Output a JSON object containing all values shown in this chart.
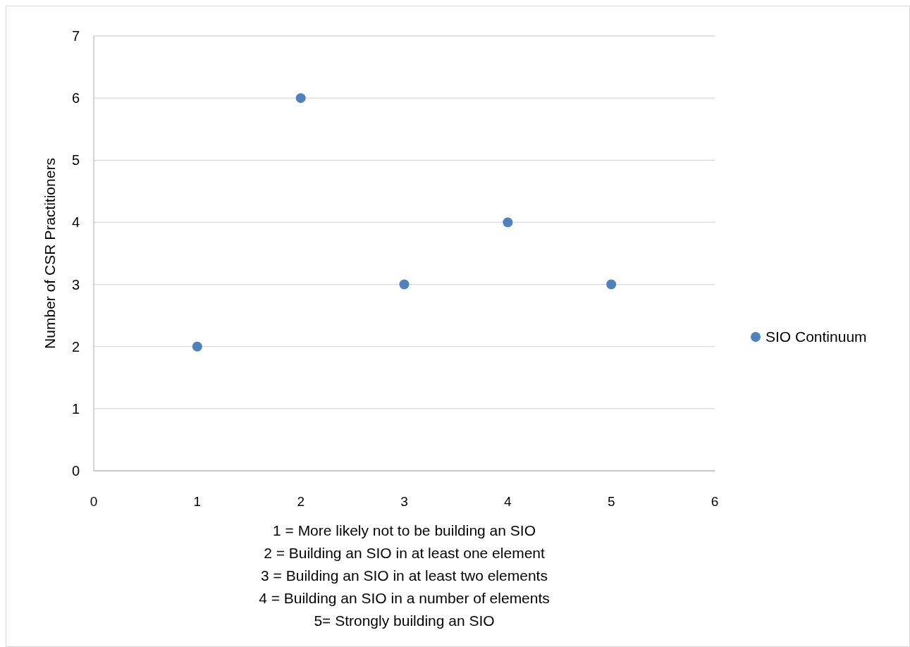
{
  "chart_data": {
    "type": "scatter",
    "xlabel": "1 = More likely not to be building an SIO\n2 = Building an SIO in at least one element\n3 = Building an SIO in at least two elements\n4 = Building an SIO in a number of elements\n5= Strongly building an SIO",
    "ylabel": "Number of CSR Practitioners",
    "x": [
      1,
      2,
      3,
      4,
      5
    ],
    "series": [
      {
        "name": "SIO Continuum",
        "color": "#4f81bd",
        "values": [
          2,
          6,
          3,
          4,
          3
        ]
      }
    ],
    "xlim": [
      0,
      6
    ],
    "xticks": [
      0,
      1,
      2,
      3,
      4,
      5,
      6
    ],
    "ylim": [
      0,
      7
    ],
    "yticks": [
      0,
      1,
      2,
      3,
      4,
      5,
      6,
      7
    ],
    "grid": "y",
    "legend": "right",
    "marker": "circle"
  }
}
